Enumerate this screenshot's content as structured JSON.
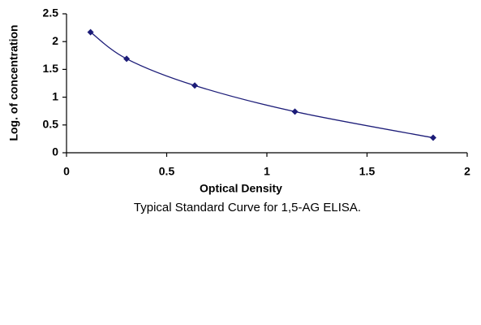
{
  "chart_data": {
    "type": "scatter-line",
    "title": "Typical Standard Curve for 1,5-AG ELISA.",
    "x_label": "Optical Density",
    "y_label": "Log. of concentration",
    "series": [
      {
        "color": "#1c1c78",
        "x": [
          0.12,
          0.3,
          0.64,
          1.14,
          1.83
        ],
        "values": [
          2.17,
          1.69,
          1.21,
          0.74,
          0.27
        ]
      }
    ],
    "xlim": [
      0,
      2
    ],
    "xticks": [
      0,
      0.5,
      1,
      1.5,
      2
    ],
    "ylim": [
      0,
      2.5
    ],
    "yticks": [
      0,
      0.5,
      1,
      1.5,
      2,
      2.5
    ],
    "grid": false
  }
}
